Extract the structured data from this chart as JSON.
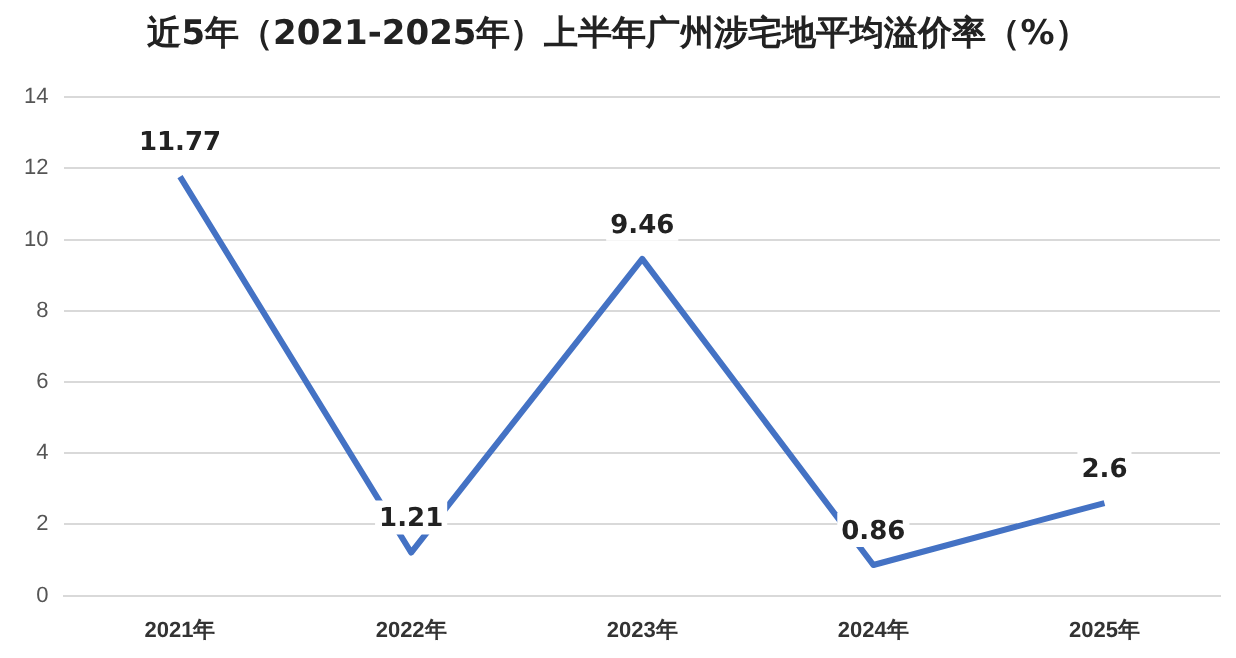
{
  "chart_data": {
    "type": "line",
    "title": "近5年（2021-2025年）上半年广州涉宅地平均溢价率（%）",
    "categories": [
      "2021年",
      "2022年",
      "2023年",
      "2024年",
      "2025年"
    ],
    "series": [
      {
        "color": "#4472c4",
        "values": [
          11.77,
          1.21,
          9.46,
          0.86,
          2.6
        ]
      }
    ],
    "ylim": [
      0,
      14
    ],
    "yticks": [
      0,
      2,
      4,
      6,
      8,
      10,
      12,
      14
    ],
    "grid": "y",
    "legend": false,
    "marker": "none",
    "data_labels": true
  }
}
